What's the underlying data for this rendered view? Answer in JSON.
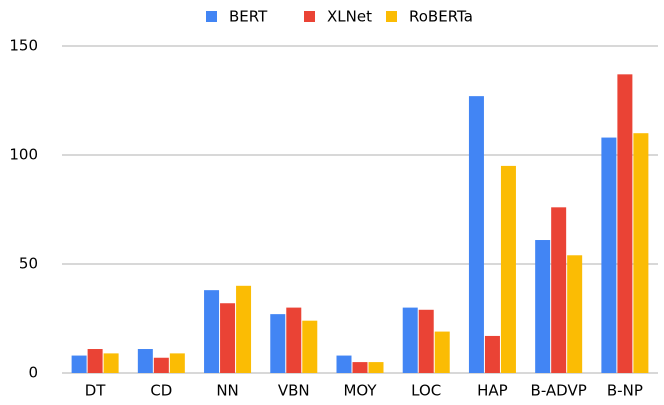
{
  "chart_data": {
    "type": "bar",
    "categories": [
      "DT",
      "CD",
      "NN",
      "VBN",
      "MOY",
      "LOC",
      "HAP",
      "B-ADVP",
      "B-NP"
    ],
    "series": [
      {
        "name": "BERT",
        "color": "#4285f4",
        "values": [
          8,
          11,
          38,
          27,
          8,
          30,
          127,
          61,
          108
        ]
      },
      {
        "name": "XLNet",
        "color": "#ea4335",
        "values": [
          11,
          7,
          32,
          30,
          5,
          29,
          17,
          76,
          137
        ]
      },
      {
        "name": "RoBERTa",
        "color": "#fbbc04",
        "values": [
          9,
          9,
          40,
          24,
          5,
          19,
          95,
          54,
          110
        ]
      }
    ],
    "ylim": [
      0,
      150
    ],
    "yticks": [
      0,
      50,
      100,
      150
    ],
    "grid": true,
    "legend": "top"
  }
}
